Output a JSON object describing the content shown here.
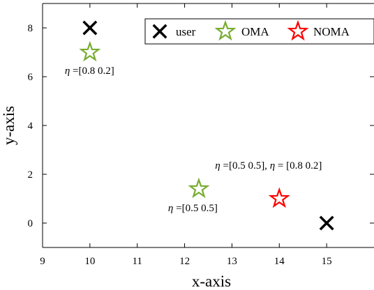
{
  "chart_data": {
    "type": "scatter",
    "title": "",
    "xlabel": "x-axis",
    "ylabel": "y-axis",
    "xlim": [
      9,
      16
    ],
    "ylim": [
      -1,
      9
    ],
    "x_ticks": [
      9,
      10,
      11,
      12,
      13,
      14,
      15
    ],
    "y_ticks": [
      0,
      2,
      4,
      6,
      8
    ],
    "grid": false,
    "legend_position": "top-right",
    "series": [
      {
        "name": "user",
        "marker": "cross",
        "color": "#000000",
        "points": [
          {
            "x": 10,
            "y": 8
          },
          {
            "x": 15,
            "y": 0
          }
        ]
      },
      {
        "name": "OMA",
        "marker": "star",
        "color": "#77ac30",
        "points": [
          {
            "x": 10,
            "y": 7
          },
          {
            "x": 12.3,
            "y": 1.4
          }
        ]
      },
      {
        "name": "NOMA",
        "marker": "star",
        "color": "#ff0000",
        "points": [
          {
            "x": 14,
            "y": 1
          }
        ]
      }
    ],
    "annotations": [
      {
        "symbol": "η",
        "text": " =[0.8 0.2]",
        "x": 10,
        "y": 7
      },
      {
        "symbol": "η",
        "text": " =[0.5 0.5]",
        "x": 12.3,
        "y": 1.4
      },
      {
        "symbol": "η",
        "text": " =[0.5 0.5], ",
        "symbol2": "η",
        "text2": " = [0.8 0.2]",
        "x": 14,
        "y": 1
      }
    ]
  }
}
